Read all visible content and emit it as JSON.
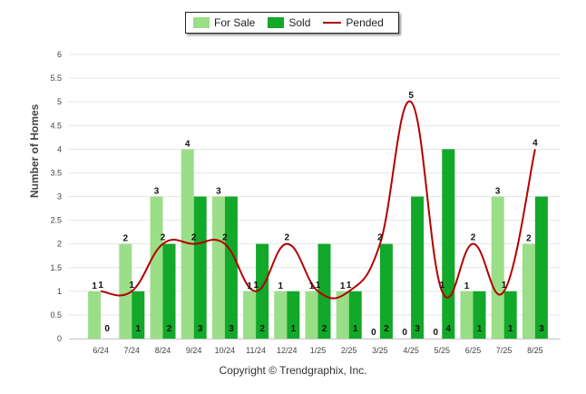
{
  "legend": {
    "for_sale": "For Sale",
    "sold": "Sold",
    "pended": "Pended"
  },
  "copyright": "Copyright © Trendgraphix, Inc.",
  "colors": {
    "for_sale": "#9ade87",
    "sold": "#12a829",
    "pended": "#b30000"
  },
  "chart_data": {
    "type": "bar",
    "ylabel": "Number of Homes",
    "xlabel": "",
    "ylim": [
      0,
      6
    ],
    "yticks": [
      "0",
      "0.5",
      "1",
      "1.5",
      "2",
      "2.5",
      "3",
      "3.5",
      "4",
      "4.5",
      "5",
      "5.5",
      "6"
    ],
    "grid": true,
    "legend_position": "top-center",
    "categories": [
      "6/24",
      "7/24",
      "8/24",
      "9/24",
      "10/24",
      "11/24",
      "12/24",
      "1/25",
      "2/25",
      "3/25",
      "4/25",
      "5/25",
      "6/25",
      "7/25",
      "8/25"
    ],
    "series": [
      {
        "name": "For Sale",
        "type": "bar",
        "values": [
          1,
          2,
          3,
          4,
          3,
          1,
          1,
          1,
          1,
          0,
          0,
          0,
          1,
          3,
          2
        ]
      },
      {
        "name": "Sold",
        "type": "bar",
        "values": [
          0,
          1,
          2,
          3,
          3,
          2,
          1,
          2,
          1,
          2,
          3,
          4,
          1,
          1,
          3
        ]
      },
      {
        "name": "Pended",
        "type": "line",
        "values": [
          1,
          1,
          2,
          2,
          2,
          1,
          2,
          1,
          1,
          2,
          5,
          1,
          2,
          1,
          4
        ]
      }
    ]
  }
}
